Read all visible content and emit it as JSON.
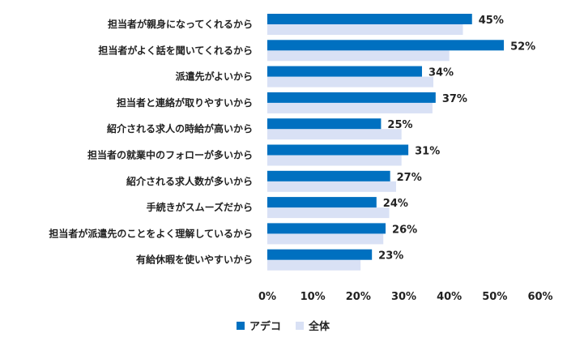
{
  "chart_data": {
    "type": "bar",
    "orientation": "horizontal",
    "categories": [
      "担当者が親身になってくれるから",
      "担当者がよく話を聞いてくれるから",
      "派遣先がよいから",
      "担当者と連絡が取りやすいから",
      "紹介される求人の時給が高いから",
      "担当者の就業中のフォローが多いから",
      "紹介される求人数が多いから",
      "手続きがスムーズだから",
      "担当者が派遣先のことをよく理解しているから",
      "有給休暇を使いやすいから"
    ],
    "series": [
      {
        "name": "アデコ",
        "color": "#0070c0",
        "values": [
          45,
          52,
          34,
          37,
          25,
          31,
          27,
          24,
          26,
          23
        ]
      },
      {
        "name": "全体",
        "color": "#d9e1f5",
        "values": [
          43,
          40,
          36.5,
          36.3,
          29.5,
          29.5,
          28.3,
          26.8,
          25.5,
          20.5
        ]
      }
    ],
    "data_labels": [
      "45%",
      "52%",
      "34%",
      "37%",
      "25%",
      "31%",
      "27%",
      "24%",
      "26%",
      "23%"
    ],
    "x_ticks": [
      "0%",
      "10%",
      "20%",
      "30%",
      "40%",
      "50%",
      "60%"
    ],
    "xlim": [
      0,
      60
    ],
    "grid": false,
    "legend_position": "bottom"
  }
}
